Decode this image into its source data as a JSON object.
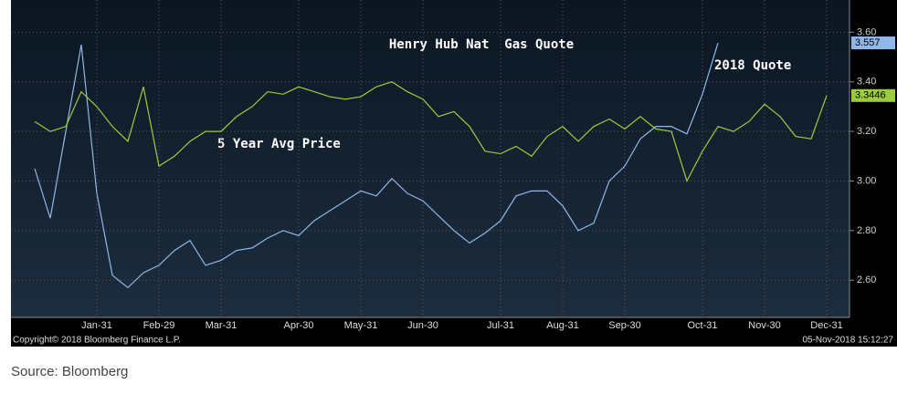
{
  "chart_data": {
    "type": "line",
    "title": "Henry Hub Nat  Gas Quote",
    "categories": [
      null,
      null,
      null,
      null,
      "Jan-31",
      null,
      null,
      null,
      "Feb-29",
      null,
      null,
      null,
      "Mar-31",
      null,
      null,
      null,
      null,
      "Apr-30",
      null,
      null,
      null,
      "May-31",
      null,
      null,
      null,
      "Jun-30",
      null,
      null,
      null,
      null,
      "Jul-31",
      null,
      null,
      null,
      "Aug-31",
      null,
      null,
      null,
      "Sep-30",
      null,
      null,
      null,
      null,
      "Oct-31",
      null,
      null,
      null,
      "Nov-30",
      null,
      null,
      null,
      "Dec-31"
    ],
    "series": [
      {
        "name": "2018 Quote",
        "color": "#8fb8e8",
        "values": [
          3.05,
          2.85,
          3.2,
          3.55,
          2.95,
          2.62,
          2.57,
          2.63,
          2.66,
          2.72,
          2.76,
          2.66,
          2.68,
          2.72,
          2.73,
          2.77,
          2.8,
          2.78,
          2.84,
          2.88,
          2.92,
          2.96,
          2.94,
          3.01,
          2.95,
          2.92,
          2.86,
          2.8,
          2.75,
          2.79,
          2.84,
          2.94,
          2.96,
          2.96,
          2.9,
          2.8,
          2.83,
          3.0,
          3.06,
          3.17,
          3.22,
          3.22,
          3.19,
          3.35,
          3.557,
          null,
          null,
          null,
          null,
          null,
          null,
          null
        ]
      },
      {
        "name": "5 Year Avg Price",
        "color": "#9ccc3c",
        "values": [
          3.24,
          3.2,
          3.22,
          3.36,
          3.3,
          3.22,
          3.16,
          3.38,
          3.06,
          3.1,
          3.16,
          3.2,
          3.2,
          3.26,
          3.3,
          3.36,
          3.35,
          3.38,
          3.36,
          3.34,
          3.33,
          3.34,
          3.38,
          3.4,
          3.36,
          3.33,
          3.26,
          3.28,
          3.22,
          3.12,
          3.11,
          3.14,
          3.1,
          3.18,
          3.22,
          3.16,
          3.22,
          3.25,
          3.21,
          3.26,
          3.21,
          3.2,
          3.0,
          3.12,
          3.22,
          3.2,
          3.24,
          3.31,
          3.26,
          3.18,
          3.17,
          3.3446
        ]
      }
    ],
    "ylim": [
      2.45,
      3.73
    ],
    "yticks": [
      {
        "value": 2.6,
        "label": "2.60"
      },
      {
        "value": 2.8,
        "label": "2.80"
      },
      {
        "value": 3.0,
        "label": "3.00"
      },
      {
        "value": 3.2,
        "label": "3.20"
      },
      {
        "value": 3.4,
        "label": "3.40"
      },
      {
        "value": 3.6,
        "label": "3.60"
      }
    ],
    "grid": true,
    "copyright": "Copyright© 2018 Bloomberg Finance L.P.",
    "timestamp": "05-Nov-2018 15:12:27",
    "source": "Source: Bloomberg"
  }
}
